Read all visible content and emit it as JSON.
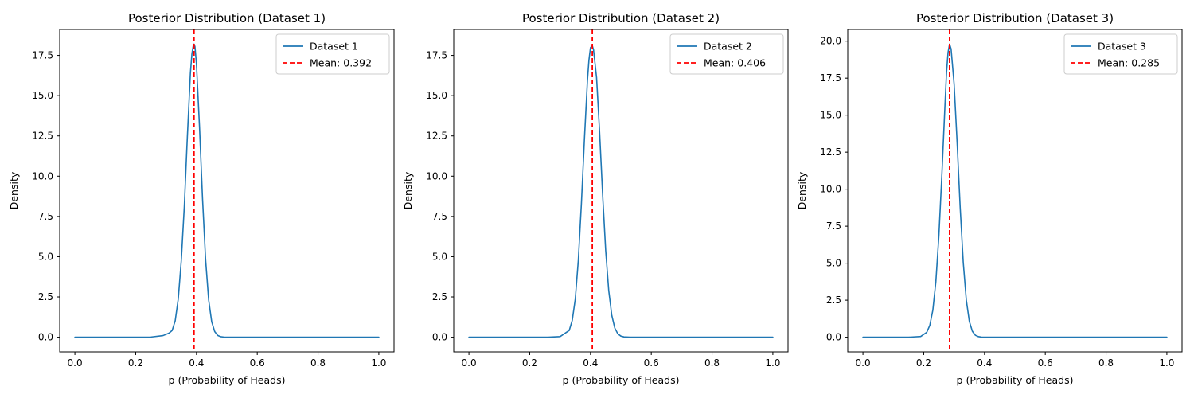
{
  "chart_data": [
    {
      "type": "line",
      "title": "Posterior Distribution (Dataset 1)",
      "xlabel": "p (Probability of Heads)",
      "ylabel": "Density",
      "xlim": [
        -0.05,
        1.05
      ],
      "ylim": [
        -0.91,
        19.11
      ],
      "xticks": [
        0.0,
        0.2,
        0.4,
        0.6,
        0.8,
        1.0
      ],
      "xtick_labels": [
        "0.0",
        "0.2",
        "0.4",
        "0.6",
        "0.8",
        "1.0"
      ],
      "yticks": [
        0.0,
        2.5,
        5.0,
        7.5,
        10.0,
        12.5,
        15.0,
        17.5
      ],
      "ytick_labels": [
        "0.0",
        "2.5",
        "5.0",
        "7.5",
        "10.0",
        "12.5",
        "15.0",
        "17.5"
      ],
      "series": [
        {
          "name": "Dataset 1",
          "color": "#1f77b4",
          "style": "solid",
          "x": [
            0.0,
            0.1,
            0.2,
            0.25,
            0.29,
            0.31,
            0.32,
            0.33,
            0.34,
            0.35,
            0.36,
            0.37,
            0.38,
            0.385,
            0.39,
            0.392,
            0.395,
            0.4,
            0.41,
            0.42,
            0.43,
            0.44,
            0.45,
            0.46,
            0.47,
            0.48,
            0.49,
            0.5,
            0.52,
            0.55,
            0.6,
            0.8,
            1.0
          ],
          "y": [
            0.0,
            0.0,
            0.0,
            0.01,
            0.1,
            0.26,
            0.42,
            1.02,
            2.37,
            4.75,
            8.13,
            12.44,
            16.39,
            17.59,
            18.17,
            18.2,
            18.05,
            16.95,
            13.07,
            8.59,
            4.83,
            2.33,
            0.97,
            0.35,
            0.11,
            0.03,
            0.01,
            0.0,
            0.0,
            0.0,
            0.0,
            0.0,
            0.0
          ]
        },
        {
          "name": "Mean: 0.392",
          "color": "#ff0000",
          "style": "dashed",
          "vline_x": 0.392
        }
      ],
      "legend_position": "upper-right"
    },
    {
      "type": "line",
      "title": "Posterior Distribution (Dataset 2)",
      "xlabel": "p (Probability of Heads)",
      "ylabel": "Density",
      "xlim": [
        -0.05,
        1.05
      ],
      "ylim": [
        -0.91,
        19.11
      ],
      "xticks": [
        0.0,
        0.2,
        0.4,
        0.6,
        0.8,
        1.0
      ],
      "xtick_labels": [
        "0.0",
        "0.2",
        "0.4",
        "0.6",
        "0.8",
        "1.0"
      ],
      "yticks": [
        0.0,
        2.5,
        5.0,
        7.5,
        10.0,
        12.5,
        15.0,
        17.5
      ],
      "ytick_labels": [
        "0.0",
        "2.5",
        "5.0",
        "7.5",
        "10.0",
        "12.5",
        "15.0",
        "17.5"
      ],
      "series": [
        {
          "name": "Dataset 2",
          "color": "#1f77b4",
          "style": "solid",
          "x": [
            0.0,
            0.1,
            0.2,
            0.26,
            0.3,
            0.33,
            0.34,
            0.35,
            0.36,
            0.37,
            0.38,
            0.39,
            0.395,
            0.4,
            0.406,
            0.41,
            0.42,
            0.43,
            0.44,
            0.45,
            0.46,
            0.47,
            0.48,
            0.49,
            0.5,
            0.51,
            0.53,
            0.56,
            0.6,
            0.8,
            1.0
          ],
          "y": [
            0.0,
            0.0,
            0.0,
            0.0,
            0.04,
            0.42,
            1.05,
            2.38,
            4.79,
            8.25,
            12.27,
            15.95,
            17.22,
            17.98,
            18.1,
            17.85,
            16.13,
            12.74,
            8.84,
            5.39,
            2.9,
            1.37,
            0.57,
            0.21,
            0.07,
            0.02,
            0.0,
            0.0,
            0.0,
            0.0,
            0.0
          ]
        },
        {
          "name": "Mean: 0.406",
          "color": "#ff0000",
          "style": "dashed",
          "vline_x": 0.406
        }
      ],
      "legend_position": "upper-right"
    },
    {
      "type": "line",
      "title": "Posterior Distribution (Dataset 3)",
      "xlabel": "p (Probability of Heads)",
      "ylabel": "Density",
      "xlim": [
        -0.05,
        1.05
      ],
      "ylim": [
        -0.99,
        20.79
      ],
      "xticks": [
        0.0,
        0.2,
        0.4,
        0.6,
        0.8,
        1.0
      ],
      "xtick_labels": [
        "0.0",
        "0.2",
        "0.4",
        "0.6",
        "0.8",
        "1.0"
      ],
      "yticks": [
        0.0,
        2.5,
        5.0,
        7.5,
        10.0,
        12.5,
        15.0,
        17.5,
        20.0
      ],
      "ytick_labels": [
        "0.0",
        "2.5",
        "5.0",
        "7.5",
        "10.0",
        "12.5",
        "15.0",
        "17.5",
        "20.0"
      ],
      "series": [
        {
          "name": "Dataset 3",
          "color": "#1f77b4",
          "style": "solid",
          "x": [
            0.0,
            0.1,
            0.15,
            0.19,
            0.21,
            0.22,
            0.23,
            0.24,
            0.25,
            0.26,
            0.27,
            0.275,
            0.28,
            0.285,
            0.29,
            0.3,
            0.31,
            0.32,
            0.33,
            0.34,
            0.35,
            0.36,
            0.37,
            0.38,
            0.39,
            0.41,
            0.45,
            0.5,
            0.6,
            0.8,
            1.0
          ],
          "y": [
            0.0,
            0.0,
            0.0,
            0.05,
            0.33,
            0.8,
            1.83,
            3.77,
            6.89,
            11.08,
            15.7,
            17.86,
            19.23,
            19.8,
            19.48,
            17.1,
            13.12,
            8.75,
            5.07,
            2.53,
            1.08,
            0.4,
            0.13,
            0.04,
            0.01,
            0.0,
            0.0,
            0.0,
            0.0,
            0.0,
            0.0
          ]
        },
        {
          "name": "Mean: 0.285",
          "color": "#ff0000",
          "style": "dashed",
          "vline_x": 0.285
        }
      ],
      "legend_position": "upper-right"
    }
  ]
}
